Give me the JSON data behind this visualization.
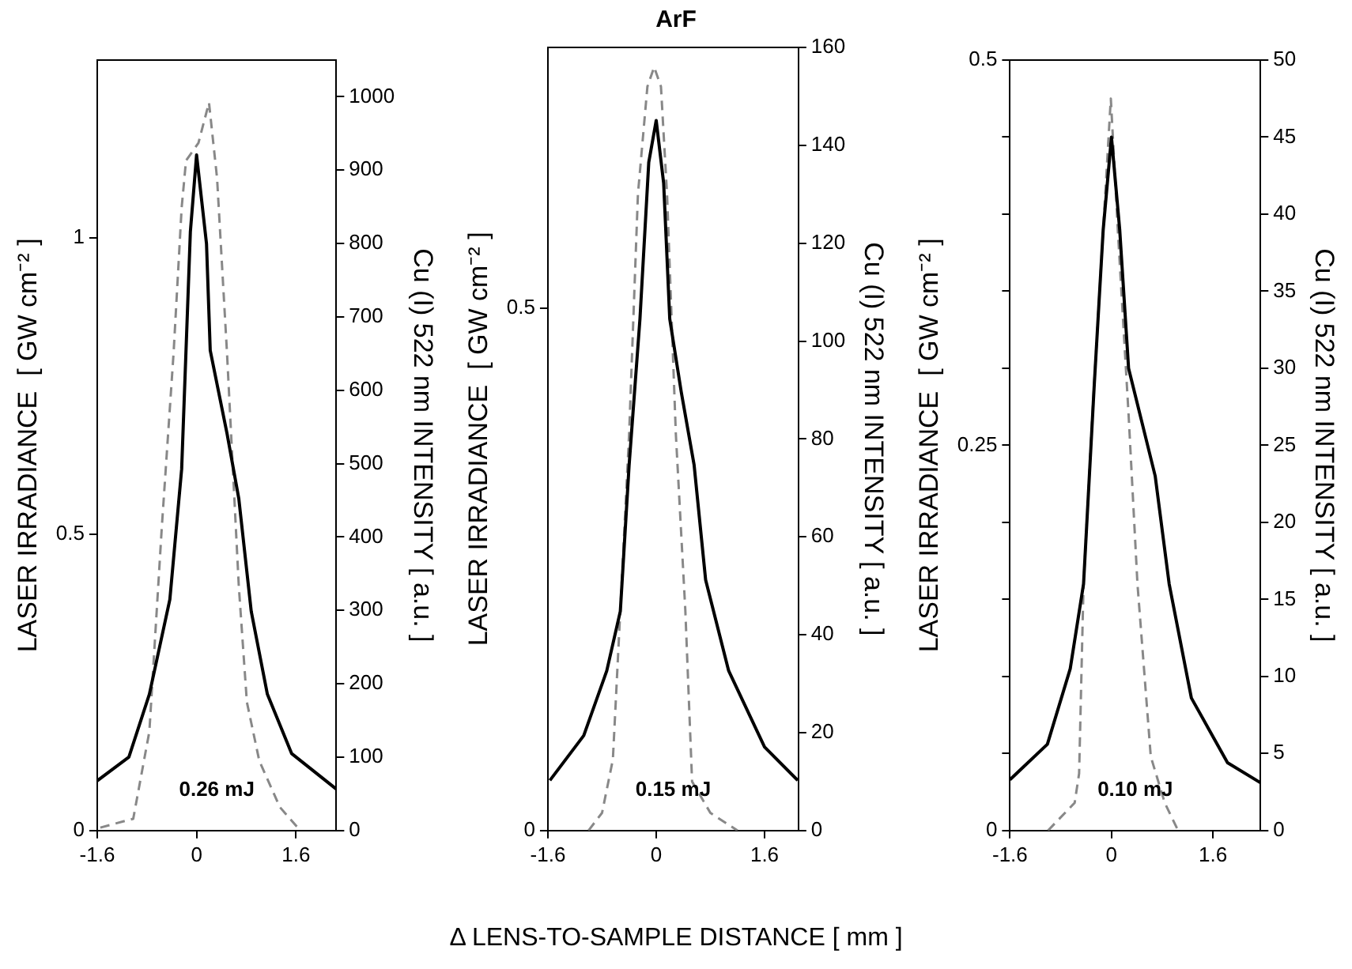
{
  "chart_data": [
    {
      "type": "line",
      "ylabel": "LASER IRRADIANCE  [ GW cm⁻² ]",
      "y2label": "Cu (I) 522 nm INTENSITY [ a.u. ]",
      "annotations": [
        "0.26 mJ"
      ],
      "xlim": [
        -1.6,
        2.25
      ],
      "xticks": [
        -1.6,
        0,
        1.6
      ],
      "ylim": [
        0,
        1.3
      ],
      "yticks": [
        0,
        0.5,
        1
      ],
      "y2lim": [
        0,
        1050
      ],
      "y2ticks": [
        0,
        100,
        200,
        300,
        400,
        500,
        600,
        700,
        800,
        900,
        1000
      ],
      "grid": false,
      "legend": false,
      "marker": "none",
      "series": [
        {
          "color": "#000000",
          "line_style": "solid",
          "x": [
            -1.6,
            -1.09,
            -0.76,
            -0.43,
            -0.24,
            -0.1,
            0,
            0.16,
            0.22,
            0.49,
            0.68,
            0.88,
            1.14,
            1.53,
            2.25
          ],
          "values": [
            0.084,
            0.124,
            0.23,
            0.39,
            0.61,
            1.01,
            1.14,
            0.99,
            0.81,
            0.67,
            0.56,
            0.37,
            0.23,
            0.13,
            0.07
          ]
        },
        {
          "color": "#888888",
          "line_style": "dashed",
          "axis": "y2",
          "x": [
            -1.55,
            -1.02,
            -0.76,
            -0.56,
            -0.37,
            -0.24,
            -0.17,
            0.03,
            0.2,
            0.33,
            0.49,
            0.68,
            0.81,
            1.01,
            1.34,
            1.67
          ],
          "values": [
            4,
            16,
            135,
            413,
            651,
            849,
            913,
            937,
            992,
            889,
            651,
            333,
            175,
            95,
            32,
            0
          ]
        }
      ]
    },
    {
      "type": "line",
      "title": "ArF",
      "xlabel": "Δ LENS-TO-SAMPLE DISTANCE [ mm ]",
      "ylabel": "LASER IRRADIANCE  [ GW cm⁻² ]",
      "y2label": "Cu (I) 522 nm INTENSITY [ a.u. ]",
      "annotations": [
        "0.15 mJ"
      ],
      "xlim": [
        -1.6,
        2.1
      ],
      "xticks": [
        -1.6,
        0,
        1.6
      ],
      "ylim": [
        0,
        0.75
      ],
      "yticks": [
        0,
        0.5
      ],
      "y2lim": [
        0,
        160
      ],
      "y2ticks": [
        0,
        20,
        40,
        60,
        80,
        100,
        120,
        140,
        160
      ],
      "grid": false,
      "legend": false,
      "marker": "none",
      "series": [
        {
          "color": "#000000",
          "line_style": "solid",
          "x": [
            -1.57,
            -1.07,
            -0.73,
            -0.53,
            -0.4,
            -0.24,
            -0.11,
            0,
            0.11,
            0.2,
            0.37,
            0.56,
            0.73,
            1.07,
            1.6,
            2.09
          ],
          "values": [
            0.048,
            0.091,
            0.153,
            0.21,
            0.35,
            0.49,
            0.64,
            0.68,
            0.62,
            0.49,
            0.42,
            0.35,
            0.24,
            0.153,
            0.08,
            0.048
          ]
        },
        {
          "color": "#888888",
          "line_style": "dashed",
          "axis": "y2",
          "x": [
            -1.0,
            -0.8,
            -0.64,
            -0.53,
            -0.4,
            -0.27,
            -0.13,
            -0.03,
            0.07,
            0.16,
            0.29,
            0.43,
            0.53,
            0.8,
            1.2
          ],
          "values": [
            0,
            3.6,
            14.5,
            45,
            81,
            130,
            152,
            156,
            152,
            130,
            81,
            45,
            10,
            3.6,
            0
          ]
        }
      ]
    },
    {
      "type": "line",
      "ylabel": "LASER IRRADIANCE  [ GW cm⁻² ]",
      "y2label": "Cu (I) 522 nm INTENSITY [ a.u. ]",
      "annotations": [
        "0.10 mJ"
      ],
      "xlim": [
        -1.6,
        2.35
      ],
      "xticks": [
        -1.6,
        0,
        1.6
      ],
      "ylim": [
        0,
        0.5
      ],
      "yticks": [
        0,
        {
          "value": 0.05,
          "label": null
        },
        {
          "value": 0.1,
          "label": null
        },
        {
          "value": 0.15,
          "label": null
        },
        {
          "value": 0.2,
          "label": null
        },
        0.25,
        {
          "value": 0.3,
          "label": null
        },
        {
          "value": 0.35,
          "label": null
        },
        {
          "value": 0.4,
          "label": null
        },
        {
          "value": 0.45,
          "label": null
        },
        0.5
      ],
      "y2lim": [
        0,
        50
      ],
      "y2ticks": [
        0,
        5,
        10,
        15,
        20,
        25,
        30,
        35,
        40,
        45,
        50
      ],
      "grid": false,
      "legend": false,
      "marker": "none",
      "series": [
        {
          "color": "#000000",
          "line_style": "solid",
          "x": [
            -1.6,
            -1.01,
            -0.65,
            -0.44,
            -0.27,
            -0.13,
            0,
            0.13,
            0.27,
            0.69,
            0.91,
            1.26,
            1.83,
            2.35
          ],
          "values": [
            0.033,
            0.056,
            0.105,
            0.16,
            0.29,
            0.39,
            0.45,
            0.39,
            0.3,
            0.23,
            0.16,
            0.086,
            0.044,
            0.031
          ]
        },
        {
          "color": "#888888",
          "line_style": "dashed",
          "axis": "y2",
          "x": [
            -1.0,
            -0.58,
            -0.51,
            -0.44,
            -0.3,
            -0.13,
            -0.01,
            0.1,
            0.27,
            0.41,
            0.62,
            0.84,
            1.05
          ],
          "values": [
            0,
            1.8,
            3.7,
            16,
            27,
            39,
            47.5,
            39,
            27,
            16,
            4.8,
            1.8,
            0
          ]
        }
      ]
    }
  ]
}
